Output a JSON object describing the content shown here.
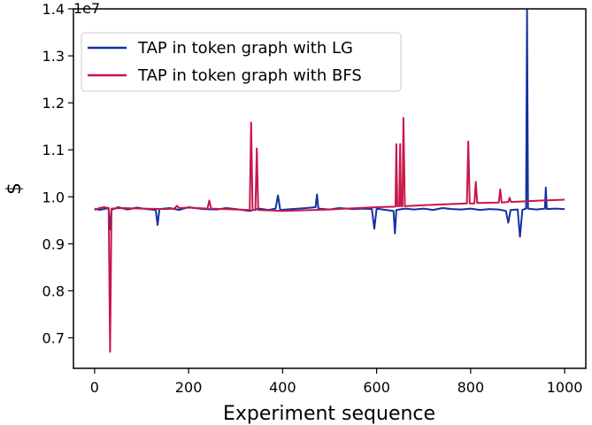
{
  "chart_data": {
    "type": "line",
    "title": "",
    "xlabel": "Experiment sequence",
    "ylabel": "$",
    "y_scale_exponent_label": "1e7",
    "xlim": [
      -45,
      1045
    ],
    "ylim": [
      0.635,
      1.4
    ],
    "x_ticks": [
      0,
      200,
      400,
      600,
      800,
      1000
    ],
    "y_ticks": [
      0.7,
      0.8,
      0.9,
      1.0,
      1.1,
      1.2,
      1.3,
      1.4
    ],
    "y_tick_labels": [
      "0.7",
      "0.8",
      "0.9",
      "1.0",
      "1.1",
      "1.2",
      "1.3",
      "1.4"
    ],
    "grid": false,
    "legend_position": "top-left",
    "series": [
      {
        "name": "TAP in token graph with LG",
        "color": "#1232a0",
        "points": [
          [
            0,
            0.975
          ],
          [
            10,
            0.972
          ],
          [
            20,
            0.974
          ],
          [
            30,
            0.976
          ],
          [
            33,
            0.93
          ],
          [
            36,
            0.972
          ],
          [
            50,
            0.978
          ],
          [
            70,
            0.973
          ],
          [
            90,
            0.977
          ],
          [
            110,
            0.974
          ],
          [
            130,
            0.972
          ],
          [
            134,
            0.94
          ],
          [
            138,
            0.974
          ],
          [
            160,
            0.976
          ],
          [
            180,
            0.972
          ],
          [
            200,
            0.978
          ],
          [
            230,
            0.974
          ],
          [
            260,
            0.973
          ],
          [
            280,
            0.976
          ],
          [
            300,
            0.974
          ],
          [
            330,
            0.97
          ],
          [
            350,
            0.975
          ],
          [
            370,
            0.972
          ],
          [
            385,
            0.975
          ],
          [
            390,
            1.003
          ],
          [
            395,
            0.972
          ],
          [
            420,
            0.974
          ],
          [
            450,
            0.976
          ],
          [
            470,
            0.978
          ],
          [
            473,
            1.005
          ],
          [
            476,
            0.975
          ],
          [
            500,
            0.973
          ],
          [
            520,
            0.976
          ],
          [
            550,
            0.974
          ],
          [
            570,
            0.975
          ],
          [
            590,
            0.974
          ],
          [
            595,
            0.932
          ],
          [
            600,
            0.975
          ],
          [
            620,
            0.972
          ],
          [
            636,
            0.97
          ],
          [
            639,
            0.922
          ],
          [
            642,
            0.972
          ],
          [
            660,
            0.975
          ],
          [
            680,
            0.973
          ],
          [
            700,
            0.975
          ],
          [
            720,
            0.972
          ],
          [
            740,
            0.976
          ],
          [
            760,
            0.974
          ],
          [
            780,
            0.973
          ],
          [
            800,
            0.975
          ],
          [
            820,
            0.972
          ],
          [
            840,
            0.974
          ],
          [
            860,
            0.973
          ],
          [
            875,
            0.97
          ],
          [
            880,
            0.945
          ],
          [
            885,
            0.972
          ],
          [
            900,
            0.973
          ],
          [
            905,
            0.915
          ],
          [
            910,
            0.972
          ],
          [
            918,
            0.975
          ],
          [
            920,
            1.398
          ],
          [
            922,
            0.975
          ],
          [
            940,
            0.973
          ],
          [
            958,
            0.975
          ],
          [
            960,
            1.02
          ],
          [
            962,
            0.974
          ],
          [
            980,
            0.975
          ],
          [
            1000,
            0.974
          ]
        ]
      },
      {
        "name": "TAP in token graph with BFS",
        "color": "#c8174a",
        "points": [
          [
            0,
            0.972
          ],
          [
            10,
            0.976
          ],
          [
            20,
            0.978
          ],
          [
            30,
            0.976
          ],
          [
            33,
            0.67
          ],
          [
            36,
            0.975
          ],
          [
            60,
            0.976
          ],
          [
            100,
            0.975
          ],
          [
            150,
            0.974
          ],
          [
            170,
            0.975
          ],
          [
            175,
            0.981
          ],
          [
            180,
            0.976
          ],
          [
            200,
            0.977
          ],
          [
            240,
            0.975
          ],
          [
            244,
            0.992
          ],
          [
            248,
            0.975
          ],
          [
            300,
            0.973
          ],
          [
            330,
            0.972
          ],
          [
            333,
            1.158
          ],
          [
            336,
            0.972
          ],
          [
            342,
            0.972
          ],
          [
            345,
            1.103
          ],
          [
            348,
            0.972
          ],
          [
            400,
            0.97
          ],
          [
            500,
            0.973
          ],
          [
            600,
            0.978
          ],
          [
            640,
            0.979
          ],
          [
            642,
            1.112
          ],
          [
            644,
            0.98
          ],
          [
            648,
            0.98
          ],
          [
            650,
            1.112
          ],
          [
            652,
            0.98
          ],
          [
            655,
            0.98
          ],
          [
            657,
            1.168
          ],
          [
            660,
            0.98
          ],
          [
            700,
            0.982
          ],
          [
            770,
            0.985
          ],
          [
            792,
            0.986
          ],
          [
            795,
            1.118
          ],
          [
            798,
            0.986
          ],
          [
            808,
            0.986
          ],
          [
            811,
            1.032
          ],
          [
            814,
            0.987
          ],
          [
            860,
            0.988
          ],
          [
            863,
            1.016
          ],
          [
            866,
            0.988
          ],
          [
            880,
            0.989
          ],
          [
            883,
            0.998
          ],
          [
            886,
            0.989
          ],
          [
            950,
            0.992
          ],
          [
            1000,
            0.994
          ]
        ]
      }
    ]
  }
}
